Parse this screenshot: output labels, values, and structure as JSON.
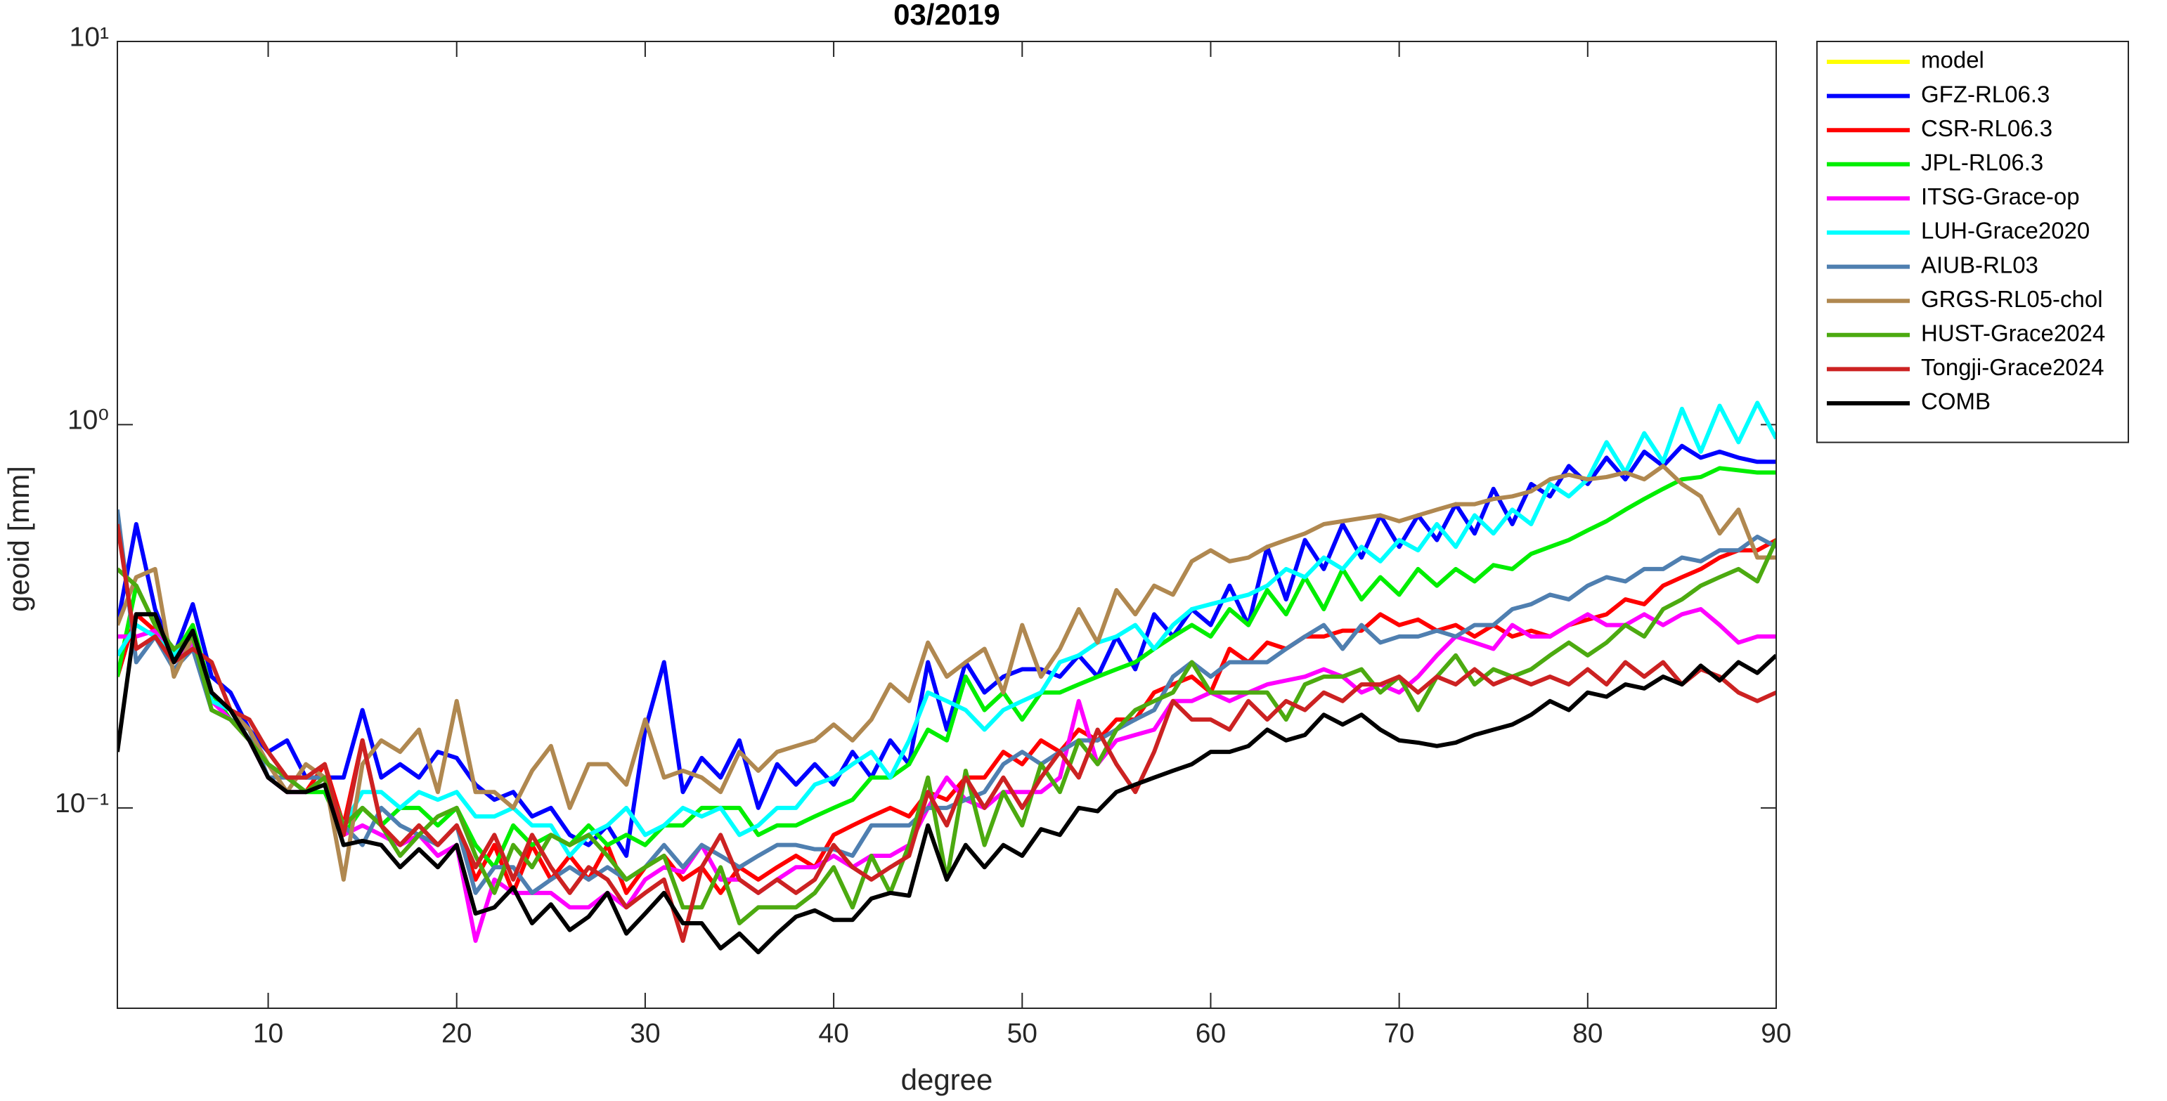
{
  "chart_data": {
    "type": "line",
    "title": "03/2019",
    "x_label": "degree",
    "y_label": "geoid [mm]",
    "x": [
      2,
      3,
      4,
      5,
      6,
      7,
      8,
      9,
      10,
      11,
      12,
      13,
      14,
      15,
      16,
      17,
      18,
      19,
      20,
      21,
      22,
      23,
      24,
      25,
      26,
      27,
      28,
      29,
      30,
      31,
      32,
      33,
      34,
      35,
      36,
      37,
      38,
      39,
      40,
      41,
      42,
      43,
      44,
      45,
      46,
      47,
      48,
      49,
      50,
      51,
      52,
      53,
      54,
      55,
      56,
      57,
      58,
      59,
      60,
      61,
      62,
      63,
      64,
      65,
      66,
      67,
      68,
      69,
      70,
      71,
      72,
      73,
      74,
      75,
      76,
      77,
      78,
      79,
      80,
      81,
      82,
      83,
      84,
      85,
      86,
      87,
      88,
      89,
      90
    ],
    "xlim": [
      2,
      90
    ],
    "xticks": [
      10,
      20,
      30,
      40,
      50,
      60,
      70,
      80,
      90
    ],
    "ylim": [
      0.03,
      10
    ],
    "yscale": "log",
    "yticks": [
      {
        "value": 0.1,
        "label": "10⁻¹"
      },
      {
        "value": 1,
        "label": "10⁰"
      },
      {
        "value": 10,
        "label": "10¹"
      }
    ],
    "grid": false,
    "legend": "outside-top-right",
    "series": [
      {
        "name": "model",
        "color": "#ffff00",
        "values": [
          null,
          null,
          null,
          null,
          null,
          null,
          null,
          null,
          null,
          null,
          null,
          null,
          null,
          null,
          null,
          null,
          null,
          null,
          null,
          null,
          null,
          null,
          null,
          null,
          null,
          null,
          null,
          null,
          null,
          null,
          null,
          null,
          null,
          null,
          null,
          null,
          null,
          null,
          null,
          null,
          null,
          null,
          null,
          null,
          null,
          null,
          null,
          null,
          null,
          null,
          null,
          null,
          null,
          null,
          null,
          null,
          null,
          null,
          null,
          null,
          null,
          null,
          null,
          null,
          null,
          null,
          null,
          null,
          null,
          null,
          null,
          null,
          null,
          null,
          null,
          null,
          null,
          null,
          null,
          null,
          null,
          null,
          null,
          null,
          null,
          null,
          null,
          null,
          null
        ]
      },
      {
        "name": "GFZ-RL06.3",
        "color": "#0000ff",
        "values": [
          0.3,
          0.55,
          0.33,
          0.25,
          0.34,
          0.22,
          0.2,
          0.16,
          0.14,
          0.15,
          0.12,
          0.12,
          0.12,
          0.18,
          0.12,
          0.13,
          0.12,
          0.14,
          0.135,
          0.115,
          0.105,
          0.11,
          0.095,
          0.1,
          0.085,
          0.08,
          0.09,
          0.075,
          0.16,
          0.24,
          0.11,
          0.135,
          0.12,
          0.15,
          0.1,
          0.13,
          0.115,
          0.13,
          0.115,
          0.14,
          0.12,
          0.15,
          0.13,
          0.24,
          0.16,
          0.24,
          0.2,
          0.22,
          0.23,
          0.23,
          0.22,
          0.25,
          0.22,
          0.28,
          0.23,
          0.32,
          0.28,
          0.33,
          0.3,
          0.38,
          0.3,
          0.48,
          0.35,
          0.5,
          0.42,
          0.55,
          0.45,
          0.58,
          0.48,
          0.58,
          0.5,
          0.62,
          0.52,
          0.68,
          0.55,
          0.7,
          0.65,
          0.78,
          0.7,
          0.82,
          0.72,
          0.85,
          0.78,
          0.88,
          0.82,
          0.85,
          0.82,
          0.8,
          0.8
        ]
      },
      {
        "name": "CSR-RL06.3",
        "color": "#ff0000",
        "values": [
          0.22,
          0.32,
          0.29,
          0.25,
          0.27,
          0.2,
          0.18,
          0.15,
          0.13,
          0.12,
          0.11,
          0.13,
          0.09,
          0.15,
          0.09,
          0.08,
          0.09,
          0.08,
          0.09,
          0.065,
          0.08,
          0.06,
          0.08,
          0.065,
          0.075,
          0.065,
          0.08,
          0.06,
          0.07,
          0.075,
          0.065,
          0.07,
          0.06,
          0.07,
          0.065,
          0.07,
          0.075,
          0.07,
          0.085,
          0.09,
          0.095,
          0.1,
          0.095,
          0.11,
          0.105,
          0.12,
          0.12,
          0.14,
          0.13,
          0.15,
          0.14,
          0.16,
          0.15,
          0.17,
          0.17,
          0.2,
          0.21,
          0.22,
          0.2,
          0.26,
          0.24,
          0.27,
          0.26,
          0.28,
          0.28,
          0.29,
          0.29,
          0.32,
          0.3,
          0.31,
          0.29,
          0.3,
          0.28,
          0.3,
          0.28,
          0.29,
          0.28,
          0.3,
          0.31,
          0.32,
          0.35,
          0.34,
          0.38,
          0.4,
          0.42,
          0.45,
          0.47,
          0.47,
          0.5
        ]
      },
      {
        "name": "JPL-RL06.3",
        "color": "#00ee00",
        "values": [
          0.22,
          0.38,
          0.3,
          0.25,
          0.3,
          0.2,
          0.17,
          0.15,
          0.13,
          0.12,
          0.11,
          0.11,
          0.085,
          0.1,
          0.09,
          0.1,
          0.1,
          0.09,
          0.1,
          0.08,
          0.07,
          0.09,
          0.08,
          0.085,
          0.08,
          0.09,
          0.08,
          0.085,
          0.08,
          0.09,
          0.09,
          0.1,
          0.1,
          0.1,
          0.085,
          0.09,
          0.09,
          0.095,
          0.1,
          0.105,
          0.12,
          0.12,
          0.13,
          0.16,
          0.15,
          0.22,
          0.18,
          0.2,
          0.17,
          0.2,
          0.2,
          0.21,
          0.22,
          0.23,
          0.24,
          0.26,
          0.28,
          0.3,
          0.28,
          0.33,
          0.3,
          0.37,
          0.32,
          0.4,
          0.33,
          0.42,
          0.35,
          0.4,
          0.36,
          0.42,
          0.38,
          0.42,
          0.39,
          0.43,
          0.42,
          0.46,
          0.48,
          0.5,
          0.53,
          0.56,
          0.6,
          0.64,
          0.68,
          0.72,
          0.73,
          0.77,
          0.76,
          0.75,
          0.75
        ]
      },
      {
        "name": "ITSG-Grace-op",
        "color": "#ff00ff",
        "values": [
          0.28,
          0.28,
          0.29,
          0.24,
          0.27,
          0.19,
          0.17,
          0.15,
          0.12,
          0.11,
          0.11,
          0.12,
          0.085,
          0.09,
          0.085,
          0.08,
          0.085,
          0.075,
          0.08,
          0.045,
          0.065,
          0.06,
          0.06,
          0.06,
          0.055,
          0.055,
          0.06,
          0.055,
          0.065,
          0.07,
          0.068,
          0.08,
          0.065,
          0.065,
          0.06,
          0.065,
          0.07,
          0.07,
          0.075,
          0.07,
          0.075,
          0.075,
          0.08,
          0.1,
          0.12,
          0.105,
          0.1,
          0.11,
          0.11,
          0.11,
          0.12,
          0.19,
          0.13,
          0.15,
          0.155,
          0.16,
          0.19,
          0.19,
          0.2,
          0.19,
          0.2,
          0.21,
          0.215,
          0.22,
          0.23,
          0.22,
          0.2,
          0.21,
          0.2,
          0.22,
          0.25,
          0.28,
          0.27,
          0.26,
          0.3,
          0.28,
          0.28,
          0.3,
          0.32,
          0.3,
          0.3,
          0.32,
          0.3,
          0.32,
          0.33,
          0.3,
          0.27,
          0.28,
          0.28
        ]
      },
      {
        "name": "LUH-Grace2020",
        "color": "#00ffff",
        "values": [
          0.25,
          0.3,
          0.28,
          0.25,
          0.28,
          0.19,
          0.18,
          0.15,
          0.13,
          0.12,
          0.11,
          0.12,
          0.09,
          0.11,
          0.11,
          0.1,
          0.11,
          0.105,
          0.11,
          0.095,
          0.095,
          0.1,
          0.09,
          0.09,
          0.075,
          0.085,
          0.09,
          0.1,
          0.085,
          0.09,
          0.1,
          0.095,
          0.1,
          0.085,
          0.09,
          0.1,
          0.1,
          0.115,
          0.12,
          0.13,
          0.14,
          0.12,
          0.15,
          0.2,
          0.19,
          0.18,
          0.16,
          0.18,
          0.19,
          0.2,
          0.24,
          0.25,
          0.27,
          0.28,
          0.3,
          0.26,
          0.3,
          0.33,
          0.34,
          0.35,
          0.36,
          0.38,
          0.42,
          0.4,
          0.45,
          0.42,
          0.48,
          0.44,
          0.5,
          0.47,
          0.55,
          0.48,
          0.58,
          0.52,
          0.6,
          0.55,
          0.7,
          0.65,
          0.72,
          0.9,
          0.75,
          0.95,
          0.8,
          1.1,
          0.85,
          1.12,
          0.9,
          1.14,
          0.92
        ]
      },
      {
        "name": "AIUB-RL03",
        "color": "#4f7fb0",
        "values": [
          0.6,
          0.24,
          0.28,
          0.23,
          0.26,
          0.18,
          0.17,
          0.16,
          0.12,
          0.12,
          0.12,
          0.12,
          0.09,
          0.08,
          0.1,
          0.09,
          0.085,
          0.08,
          0.09,
          0.06,
          0.07,
          0.07,
          0.06,
          0.065,
          0.07,
          0.065,
          0.07,
          0.065,
          0.07,
          0.08,
          0.07,
          0.08,
          0.075,
          0.07,
          0.075,
          0.08,
          0.08,
          0.078,
          0.078,
          0.075,
          0.09,
          0.09,
          0.09,
          0.1,
          0.1,
          0.105,
          0.11,
          0.13,
          0.14,
          0.13,
          0.14,
          0.15,
          0.15,
          0.16,
          0.17,
          0.18,
          0.22,
          0.24,
          0.22,
          0.24,
          0.24,
          0.24,
          0.26,
          0.28,
          0.3,
          0.26,
          0.3,
          0.27,
          0.28,
          0.28,
          0.29,
          0.28,
          0.3,
          0.3,
          0.33,
          0.34,
          0.36,
          0.35,
          0.38,
          0.4,
          0.39,
          0.42,
          0.42,
          0.45,
          0.44,
          0.47,
          0.47,
          0.51,
          0.48
        ]
      },
      {
        "name": "GRGS-RL05-chol",
        "color": "#b08850",
        "values": [
          0.3,
          0.4,
          0.42,
          0.22,
          0.28,
          0.2,
          0.18,
          0.16,
          0.13,
          0.11,
          0.13,
          0.12,
          0.065,
          0.13,
          0.15,
          0.14,
          0.16,
          0.11,
          0.19,
          0.11,
          0.11,
          0.1,
          0.125,
          0.145,
          0.1,
          0.13,
          0.13,
          0.115,
          0.17,
          0.12,
          0.125,
          0.12,
          0.11,
          0.14,
          0.125,
          0.14,
          0.145,
          0.15,
          0.165,
          0.15,
          0.17,
          0.21,
          0.19,
          0.27,
          0.22,
          0.24,
          0.26,
          0.2,
          0.3,
          0.22,
          0.26,
          0.33,
          0.27,
          0.37,
          0.32,
          0.38,
          0.36,
          0.44,
          0.47,
          0.44,
          0.45,
          0.48,
          0.5,
          0.52,
          0.55,
          0.56,
          0.57,
          0.58,
          0.56,
          0.58,
          0.6,
          0.62,
          0.62,
          0.64,
          0.65,
          0.67,
          0.72,
          0.74,
          0.72,
          0.73,
          0.75,
          0.72,
          0.78,
          0.7,
          0.65,
          0.52,
          0.6,
          0.45,
          0.45
        ]
      },
      {
        "name": "HUST-Grace2024",
        "color": "#4caa10",
        "values": [
          0.42,
          0.38,
          0.3,
          0.26,
          0.28,
          0.18,
          0.17,
          0.15,
          0.13,
          0.12,
          0.11,
          0.12,
          0.09,
          0.1,
          0.09,
          0.075,
          0.085,
          0.095,
          0.1,
          0.075,
          0.06,
          0.08,
          0.07,
          0.085,
          0.08,
          0.085,
          0.075,
          0.065,
          0.07,
          0.075,
          0.055,
          0.055,
          0.07,
          0.05,
          0.055,
          0.055,
          0.055,
          0.06,
          0.07,
          0.055,
          0.075,
          0.06,
          0.08,
          0.12,
          0.065,
          0.125,
          0.08,
          0.11,
          0.09,
          0.13,
          0.11,
          0.15,
          0.13,
          0.16,
          0.18,
          0.19,
          0.2,
          0.24,
          0.2,
          0.2,
          0.2,
          0.2,
          0.17,
          0.21,
          0.22,
          0.22,
          0.23,
          0.2,
          0.22,
          0.18,
          0.22,
          0.25,
          0.21,
          0.23,
          0.22,
          0.23,
          0.25,
          0.27,
          0.25,
          0.27,
          0.3,
          0.28,
          0.33,
          0.35,
          0.38,
          0.4,
          0.42,
          0.39,
          0.5
        ]
      },
      {
        "name": "Tongji-Grace2024",
        "color": "#cc2222",
        "values": [
          0.55,
          0.26,
          0.28,
          0.24,
          0.26,
          0.24,
          0.18,
          0.17,
          0.14,
          0.12,
          0.12,
          0.13,
          0.085,
          0.15,
          0.09,
          0.08,
          0.09,
          0.08,
          0.09,
          0.07,
          0.085,
          0.065,
          0.085,
          0.07,
          0.06,
          0.07,
          0.065,
          0.055,
          0.06,
          0.065,
          0.045,
          0.07,
          0.085,
          0.065,
          0.06,
          0.065,
          0.06,
          0.065,
          0.08,
          0.07,
          0.065,
          0.07,
          0.075,
          0.11,
          0.09,
          0.12,
          0.1,
          0.12,
          0.1,
          0.12,
          0.14,
          0.12,
          0.16,
          0.13,
          0.11,
          0.14,
          0.19,
          0.17,
          0.17,
          0.16,
          0.19,
          0.17,
          0.19,
          0.18,
          0.2,
          0.19,
          0.21,
          0.21,
          0.22,
          0.2,
          0.22,
          0.21,
          0.23,
          0.21,
          0.22,
          0.21,
          0.22,
          0.21,
          0.23,
          0.21,
          0.24,
          0.22,
          0.24,
          0.21,
          0.23,
          0.22,
          0.2,
          0.19,
          0.2
        ]
      },
      {
        "name": "COMB",
        "color": "#000000",
        "values": [
          0.14,
          0.32,
          0.32,
          0.24,
          0.29,
          0.2,
          0.18,
          0.15,
          0.12,
          0.11,
          0.11,
          0.115,
          0.08,
          0.082,
          0.08,
          0.07,
          0.078,
          0.07,
          0.08,
          0.053,
          0.055,
          0.062,
          0.05,
          0.056,
          0.048,
          0.052,
          0.06,
          0.047,
          0.053,
          0.06,
          0.05,
          0.05,
          0.043,
          0.047,
          0.042,
          0.047,
          0.052,
          0.054,
          0.051,
          0.051,
          0.058,
          0.06,
          0.059,
          0.09,
          0.065,
          0.08,
          0.07,
          0.08,
          0.075,
          0.088,
          0.085,
          0.1,
          0.098,
          0.11,
          0.115,
          0.12,
          0.125,
          0.13,
          0.14,
          0.14,
          0.145,
          0.16,
          0.15,
          0.155,
          0.175,
          0.165,
          0.175,
          0.16,
          0.15,
          0.148,
          0.145,
          0.148,
          0.155,
          0.16,
          0.165,
          0.175,
          0.19,
          0.18,
          0.2,
          0.195,
          0.21,
          0.205,
          0.22,
          0.21,
          0.235,
          0.215,
          0.24,
          0.225,
          0.25
        ]
      }
    ]
  }
}
